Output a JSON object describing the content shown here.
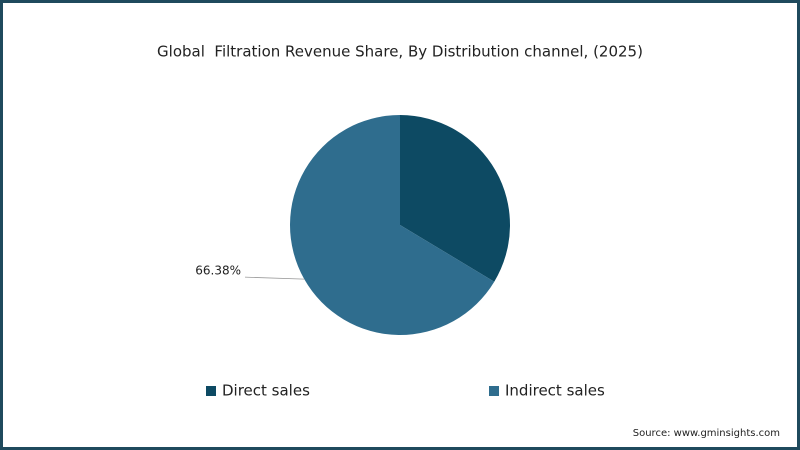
{
  "chart_data": {
    "type": "pie",
    "title": "Global  Filtration Revenue Share, By Distribution channel, (2025)",
    "categories": [
      "Direct sales",
      "Indirect sales"
    ],
    "values": [
      33.62,
      66.38
    ],
    "value_labels": [
      null,
      "66.38%"
    ],
    "colors": [
      "#0d4a63",
      "#2f6d8e"
    ],
    "legend": "bottom",
    "source": "Source: www.gminsights.com"
  }
}
